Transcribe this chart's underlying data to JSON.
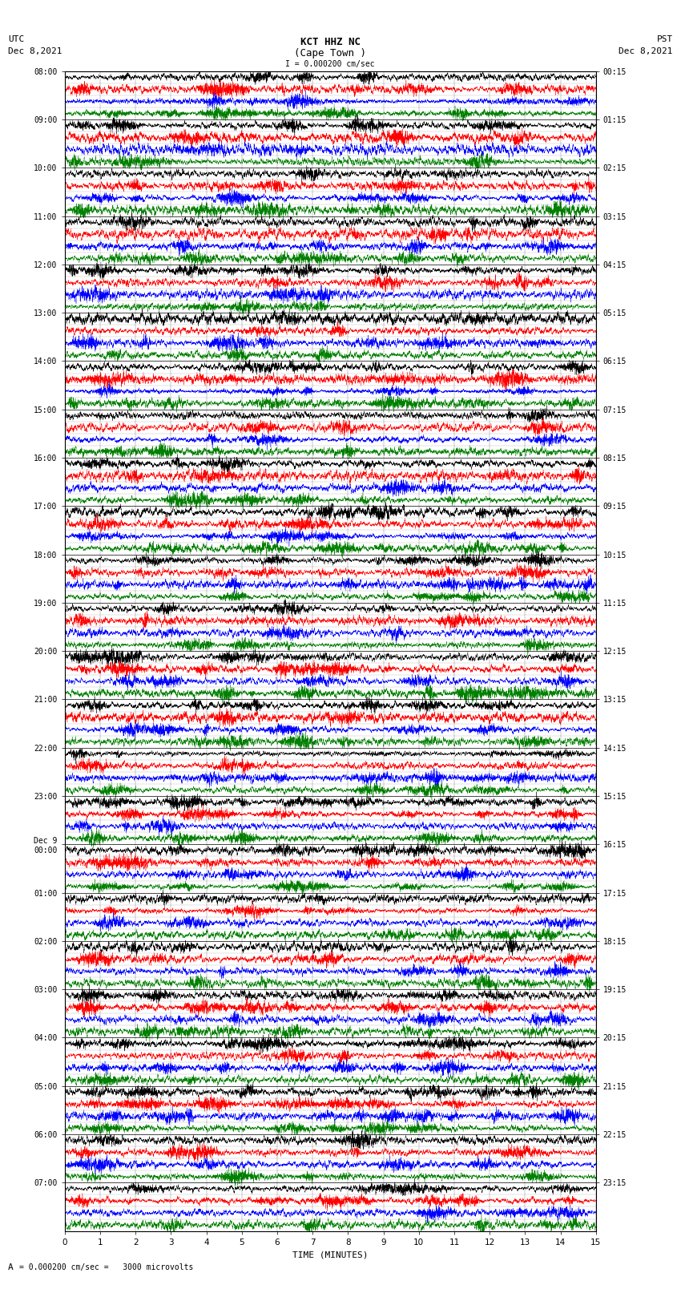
{
  "title_line1": "KCT HHZ NC",
  "title_line2": "(Cape Town )",
  "scale_text": "I = 0.000200 cm/sec",
  "utc_label": "UTC",
  "utc_date": "Dec 8,2021",
  "pst_label": "PST",
  "pst_date": "Dec 8,2021",
  "xlabel": "TIME (MINUTES)",
  "bottom_label": "= 0.000200 cm/sec =   3000 microvolts",
  "left_times": [
    "08:00",
    "09:00",
    "10:00",
    "11:00",
    "12:00",
    "13:00",
    "14:00",
    "15:00",
    "16:00",
    "17:00",
    "18:00",
    "19:00",
    "20:00",
    "21:00",
    "22:00",
    "23:00",
    "Dec 9\n00:00",
    "01:00",
    "02:00",
    "03:00",
    "04:00",
    "05:00",
    "06:00",
    "07:00"
  ],
  "right_times": [
    "00:15",
    "01:15",
    "02:15",
    "03:15",
    "04:15",
    "05:15",
    "06:15",
    "07:15",
    "08:15",
    "09:15",
    "10:15",
    "11:15",
    "12:15",
    "13:15",
    "14:15",
    "15:15",
    "16:15",
    "17:15",
    "18:15",
    "19:15",
    "20:15",
    "21:15",
    "22:15",
    "23:15"
  ],
  "num_rows": 24,
  "num_traces_per_row": 4,
  "minutes_per_row": 15,
  "samples_per_minute": 400,
  "trace_colors": [
    "black",
    "red",
    "blue",
    "green"
  ],
  "fig_width": 8.5,
  "fig_height": 16.13,
  "dpi": 100,
  "background_color": "white",
  "plot_area_color": "white",
  "xlim": [
    0,
    15
  ],
  "xticks": [
    0,
    1,
    2,
    3,
    4,
    5,
    6,
    7,
    8,
    9,
    10,
    11,
    12,
    13,
    14,
    15
  ],
  "title_fontsize": 9,
  "label_fontsize": 8,
  "tick_fontsize": 7.5,
  "time_label_fontsize": 7
}
